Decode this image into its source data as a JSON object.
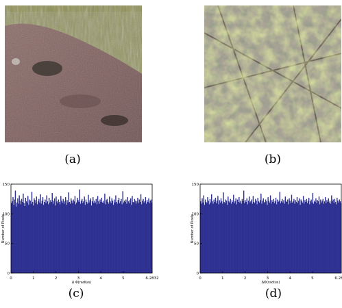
{
  "figure": {
    "panels": [
      {
        "caption": "(a)",
        "image": "rock-texture-photo"
      },
      {
        "caption": "(b)",
        "image": "leaves-branches-photo"
      },
      {
        "caption": "(c)",
        "chart": 0
      },
      {
        "caption": "(d)",
        "chart": 1
      }
    ]
  },
  "colors": {
    "bar": "#2e3192",
    "axis": "#000000"
  },
  "chart_data": [
    {
      "type": "bar",
      "title": "",
      "xlabel": "Δ Φ(radius)",
      "ylabel": "Number of Pixels",
      "xlim": [
        0,
        6.2832
      ],
      "ylim": [
        0,
        150
      ],
      "xticks": [
        "0",
        "1",
        "2",
        "3",
        "4",
        "5",
        "6.2832"
      ],
      "yticks": [
        "0",
        "50",
        "100",
        "150"
      ],
      "bins": 180,
      "values": [
        118,
        121,
        128,
        115,
        124,
        139,
        112,
        119,
        126,
        117,
        131,
        122,
        116,
        125,
        120,
        134,
        118,
        113,
        127,
        121,
        119,
        130,
        115,
        124,
        122,
        117,
        137,
        120,
        114,
        126,
        123,
        118,
        129,
        116,
        121,
        125,
        119,
        133,
        117,
        122,
        128,
        115,
        120,
        124,
        118,
        131,
        121,
        116,
        127,
        119,
        123,
        120,
        135,
        117,
        122,
        126,
        114,
        129,
        121,
        118,
        124,
        120,
        116,
        130,
        122,
        119,
        125,
        117,
        121,
        128,
        115,
        123,
        119,
        136,
        120,
        117,
        126,
        122,
        118,
        124,
        121,
        130,
        116,
        119,
        127,
        123,
        120,
        141,
        117,
        122,
        125,
        118,
        121,
        129,
        115,
        124,
        120,
        117,
        132,
        119,
        123,
        126,
        114,
        121,
        128,
        118,
        122,
        119,
        125,
        116,
        130,
        121,
        117,
        124,
        120,
        127,
        119,
        122,
        118,
        134,
        116,
        123,
        125,
        120,
        117,
        129,
        121,
        118,
        126,
        122,
        115,
        124,
        119,
        131,
        120,
        117,
        123,
        127,
        118,
        121,
        125,
        116,
        138,
        119,
        122,
        120,
        124,
        117,
        128,
        121,
        118,
        123,
        126,
        115,
        130,
        120,
        119,
        125,
        122,
        117,
        121,
        127,
        118,
        124,
        120,
        133,
        116,
        122,
        125,
        119,
        121,
        128,
        117,
        123,
        120,
        126,
        118,
        122,
        124,
        119
      ]
    },
    {
      "type": "bar",
      "title": "",
      "xlabel": "ΔΦ(radius)",
      "ylabel": "Number of Pixels",
      "xlim": [
        0,
        6.2832
      ],
      "ylim": [
        0,
        150
      ],
      "xticks": [
        "0",
        "1",
        "2",
        "3",
        "4",
        "5",
        "6.2832"
      ],
      "yticks": [
        "0",
        "50",
        "100",
        "150"
      ],
      "bins": 180,
      "values": [
        121,
        117,
        126,
        119,
        131,
        115,
        124,
        120,
        118,
        128,
        122,
        116,
        125,
        119,
        133,
        121,
        117,
        124,
        120,
        127,
        118,
        122,
        130,
        116,
        123,
        119,
        126,
        121,
        117,
        136,
        120,
        118,
        124,
        122,
        115,
        129,
        121,
        119,
        125,
        117,
        123,
        120,
        132,
        118,
        121,
        126,
        116,
        124,
        120,
        128,
        119,
        122,
        117,
        125,
        121,
        139,
        118,
        123,
        120,
        126,
        116,
        122,
        129,
        119,
        121,
        124,
        117,
        130,
        120,
        118,
        125,
        122,
        116,
        127,
        121,
        119,
        123,
        134,
        117,
        122,
        126,
        120,
        118,
        124,
        121,
        115,
        128,
        122,
        119,
        131,
        117,
        123,
        120,
        125,
        118,
        121,
        127,
        116,
        124,
        120,
        122,
        137,
        118,
        121,
        125,
        119,
        123,
        117,
        129,
        121,
        120,
        124,
        116,
        126,
        122,
        118,
        132,
        119,
        121,
        125,
        117,
        123,
        120,
        128,
        118,
        122,
        126,
        115,
        124,
        121,
        119,
        130,
        117,
        123,
        120,
        125,
        118,
        122,
        127,
        116,
        121,
        124,
        119,
        135,
        117,
        122,
        120,
        126,
        118,
        123,
        121,
        129,
        116,
        124,
        119,
        122,
        125,
        117,
        121,
        128,
        118,
        123,
        120,
        126,
        119,
        122,
        117,
        131,
        121,
        124,
        118,
        125,
        120,
        116,
        127,
        122,
        119,
        124,
        121,
        118
      ]
    }
  ]
}
